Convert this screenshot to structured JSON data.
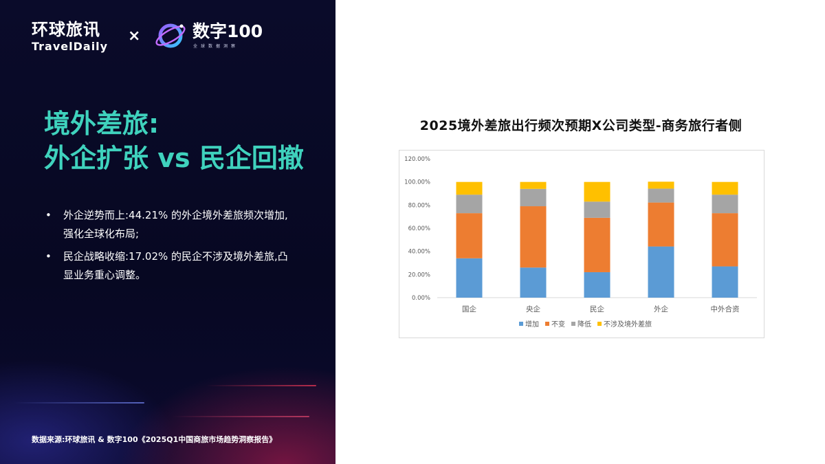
{
  "brand": {
    "logo1_cn": "环球旅讯",
    "logo1_en": "TravelDaily",
    "times_sign": "×",
    "logo2_name": "数字100",
    "logo2_tagline": "全球数据洞察"
  },
  "headline": {
    "line1": "境外差旅:",
    "line2": "外企扩张 vs 民企回撤"
  },
  "bullets": [
    {
      "marker": "•",
      "text": "外企逆势而上:44.21% 的外企境外差旅频次增加,强化全球化布局;"
    },
    {
      "marker": "•",
      "text": "民企战略收缩:17.02% 的民企不涉及境外差旅,凸显业务重心调整。"
    }
  ],
  "source_note": "数据来源:环球旅讯 & 数字100《2025Q1中国商旅市场趋势洞察报告》",
  "colors": {
    "accent_teal": "#3fd2bd",
    "series_increase": "#5b9bd5",
    "series_same": "#ed7d31",
    "series_decrease": "#a5a5a5",
    "series_none": "#ffc000"
  },
  "chart_data": {
    "type": "bar",
    "stacked": true,
    "title": "2025境外差旅出行频次预期X公司类型-商务旅行者侧",
    "categories": [
      "国企",
      "央企",
      "民企",
      "外企",
      "中外合资"
    ],
    "series": [
      {
        "name": "增加",
        "color": "#5b9bd5",
        "values": [
          0.34,
          0.26,
          0.22,
          0.4421,
          0.27
        ]
      },
      {
        "name": "不变",
        "color": "#ed7d31",
        "values": [
          0.39,
          0.53,
          0.47,
          0.38,
          0.46
        ]
      },
      {
        "name": "降低",
        "color": "#a5a5a5",
        "values": [
          0.16,
          0.15,
          0.14,
          0.12,
          0.16
        ]
      },
      {
        "name": "不涉及境外差旅",
        "color": "#ffc000",
        "values": [
          0.11,
          0.06,
          0.17,
          0.06,
          0.11
        ]
      }
    ],
    "yticks": [
      "0.00%",
      "20.00%",
      "40.00%",
      "60.00%",
      "80.00%",
      "100.00%",
      "120.00%"
    ],
    "ylim": [
      0,
      1.2
    ],
    "grid": false,
    "legend_position": "bottom"
  }
}
